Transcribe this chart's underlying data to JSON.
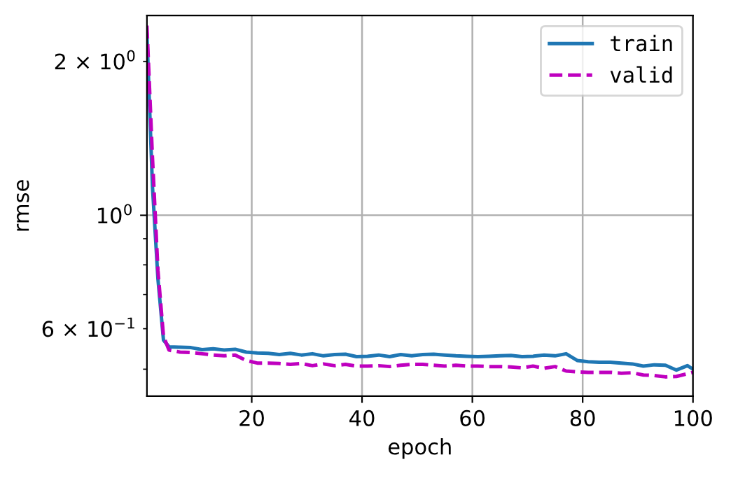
{
  "chart_data": {
    "type": "line",
    "xlabel": "epoch",
    "ylabel": "rmse",
    "log": "y",
    "grid": true,
    "legend": "top right",
    "xlim": [
      1,
      100
    ],
    "xticks": [
      20,
      40,
      60,
      80,
      100
    ],
    "ylim": [
      0.443,
      2.46
    ],
    "yticks": [
      {
        "value": 2,
        "label": "2 × 10$^{0}$"
      },
      {
        "value": 1,
        "label": "10$^{0}$"
      },
      {
        "value": 0.6,
        "label": "6 × 10$^{−1}$"
      },
      {
        "value": 0.9,
        "label": null
      },
      {
        "value": 0.8,
        "label": null
      },
      {
        "value": 0.7,
        "label": null
      },
      {
        "value": 0.5,
        "label": null
      }
    ],
    "series": [
      {
        "name": "train",
        "color": "#1f77b4",
        "line_style": "solid",
        "x": [
          1,
          2,
          3,
          4,
          5,
          7,
          9,
          11,
          13,
          15,
          17,
          19,
          21,
          23,
          25,
          27,
          29,
          31,
          33,
          35,
          37,
          39,
          41,
          43,
          45,
          47,
          49,
          51,
          53,
          55,
          57,
          59,
          61,
          63,
          65,
          67,
          69,
          71,
          73,
          75,
          77,
          79,
          81,
          83,
          85,
          87,
          89,
          91,
          93,
          95,
          97,
          99,
          100
        ],
        "values": [
          2.26,
          1.14,
          0.75,
          0.57,
          0.553,
          0.552,
          0.551,
          0.546,
          0.548,
          0.545,
          0.547,
          0.54,
          0.538,
          0.537,
          0.534,
          0.537,
          0.533,
          0.536,
          0.531,
          0.534,
          0.535,
          0.529,
          0.53,
          0.533,
          0.529,
          0.534,
          0.531,
          0.534,
          0.535,
          0.533,
          0.531,
          0.53,
          0.529,
          0.53,
          0.531,
          0.532,
          0.529,
          0.53,
          0.533,
          0.531,
          0.536,
          0.52,
          0.517,
          0.516,
          0.516,
          0.514,
          0.512,
          0.507,
          0.51,
          0.509,
          0.498,
          0.508,
          0.5
        ]
      },
      {
        "name": "valid",
        "color": "#bf00bf",
        "line_style": "dashed",
        "x": [
          1,
          2,
          3,
          4,
          5,
          7,
          9,
          11,
          13,
          15,
          17,
          19,
          21,
          23,
          25,
          27,
          29,
          31,
          33,
          35,
          37,
          39,
          41,
          43,
          45,
          47,
          49,
          51,
          53,
          55,
          57,
          59,
          61,
          63,
          65,
          67,
          69,
          71,
          73,
          75,
          77,
          79,
          81,
          83,
          85,
          87,
          89,
          91,
          93,
          95,
          97,
          99,
          100
        ],
        "values": [
          2.35,
          1.3,
          0.78,
          0.58,
          0.545,
          0.54,
          0.539,
          0.536,
          0.533,
          0.531,
          0.533,
          0.52,
          0.514,
          0.514,
          0.513,
          0.511,
          0.513,
          0.508,
          0.512,
          0.508,
          0.511,
          0.507,
          0.507,
          0.508,
          0.506,
          0.509,
          0.511,
          0.511,
          0.509,
          0.507,
          0.509,
          0.507,
          0.507,
          0.506,
          0.506,
          0.505,
          0.503,
          0.507,
          0.502,
          0.506,
          0.496,
          0.494,
          0.493,
          0.493,
          0.493,
          0.491,
          0.492,
          0.487,
          0.486,
          0.483,
          0.484,
          0.49,
          0.493
        ]
      }
    ]
  }
}
